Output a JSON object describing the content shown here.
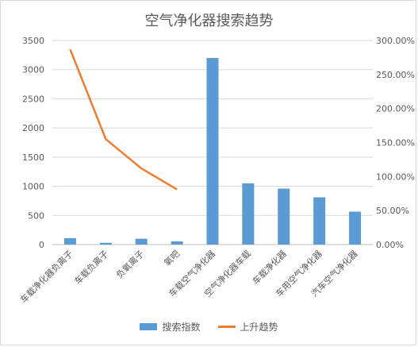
{
  "chart_data": {
    "type": "bar",
    "title": "空气净化器搜索趋势",
    "categories": [
      "车载净化器负离子",
      "车载负离子",
      "负氧离子",
      "氧吧",
      "车载空气净化器",
      "空气净化器车载",
      "车载净化器",
      "车用空气净化器",
      "汽车空气净化器"
    ],
    "series": [
      {
        "name": "搜索指数",
        "axis": "left",
        "type": "bar",
        "color": "#5b9bd5",
        "values": [
          110,
          30,
          100,
          55,
          3200,
          1050,
          960,
          810,
          565
        ]
      },
      {
        "name": "上升趋势",
        "axis": "right",
        "type": "line",
        "color": "#ed7d31",
        "values": [
          2.87,
          1.55,
          1.12,
          0.81,
          null,
          null,
          null,
          null,
          null
        ]
      }
    ],
    "left_axis": {
      "min": 0,
      "max": 3500,
      "step": 500,
      "ticks": [
        "0",
        "500",
        "1000",
        "1500",
        "2000",
        "2500",
        "3000",
        "3500"
      ]
    },
    "right_axis": {
      "min": 0,
      "max": 3.0,
      "step": 0.5,
      "ticks": [
        "0.00%",
        "50.00%",
        "100.00%",
        "150.00%",
        "200.00%",
        "250.00%",
        "300.00%"
      ]
    },
    "gridlines": true,
    "legend_position": "bottom"
  }
}
